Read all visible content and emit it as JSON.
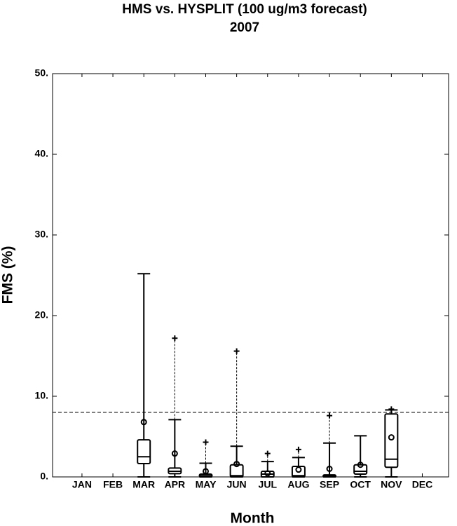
{
  "chart_data": {
    "type": "box",
    "title": "HMS vs. HYSPLIT (100 ug/m3 forecast)",
    "subtitle": "2007",
    "xlabel": "Month",
    "ylabel": "FMS (%)",
    "categories": [
      "JAN",
      "FEB",
      "MAR",
      "APR",
      "MAY",
      "JUN",
      "JUL",
      "AUG",
      "SEP",
      "OCT",
      "NOV",
      "DEC"
    ],
    "ylim": [
      0,
      50
    ],
    "yticks": [
      {
        "value": 0,
        "label": "0."
      },
      {
        "value": 10,
        "label": "10."
      },
      {
        "value": 20,
        "label": "20."
      },
      {
        "value": 30,
        "label": "30."
      },
      {
        "value": 40,
        "label": "40."
      },
      {
        "value": 50,
        "label": "50."
      }
    ],
    "reference_line": 8,
    "color": "#000000",
    "boxes": [
      null,
      null,
      {
        "min": 0,
        "q1": 1.65,
        "median": 2.5,
        "q3": 4.6,
        "max": 25.2,
        "mean": 6.8,
        "outliers": []
      },
      {
        "min": 0,
        "q1": 0.4,
        "median": 0.7,
        "q3": 1.1,
        "max": 7.1,
        "mean": 2.9,
        "outliers": [
          17.2
        ]
      },
      {
        "min": 0,
        "q1": 0,
        "median": 0.15,
        "q3": 0.35,
        "max": 1.7,
        "mean": 0.7,
        "outliers": [
          4.3
        ]
      },
      {
        "min": 0,
        "q1": 0,
        "median": 0.15,
        "q3": 1.5,
        "max": 3.8,
        "mean": 1.6,
        "outliers": [
          15.6
        ]
      },
      {
        "min": 0,
        "q1": 0,
        "median": 0.35,
        "q3": 0.7,
        "max": 1.9,
        "mean": 0.45,
        "outliers": [
          2.9
        ]
      },
      {
        "min": 0,
        "q1": 0,
        "median": 0.15,
        "q3": 1.3,
        "max": 2.4,
        "mean": 0.9,
        "outliers": [
          3.4
        ]
      },
      {
        "min": 0,
        "q1": 0,
        "median": 0.1,
        "q3": 0.25,
        "max": 4.2,
        "mean": 1.0,
        "outliers": [
          7.6
        ]
      },
      {
        "min": 0,
        "q1": 0.35,
        "median": 0.7,
        "q3": 1.5,
        "max": 5.1,
        "mean": 1.5,
        "outliers": []
      },
      {
        "min": 0,
        "q1": 1.2,
        "median": 2.2,
        "q3": 7.8,
        "max": 8.3,
        "mean": 4.9,
        "outliers": [
          8.4
        ]
      },
      null
    ]
  }
}
